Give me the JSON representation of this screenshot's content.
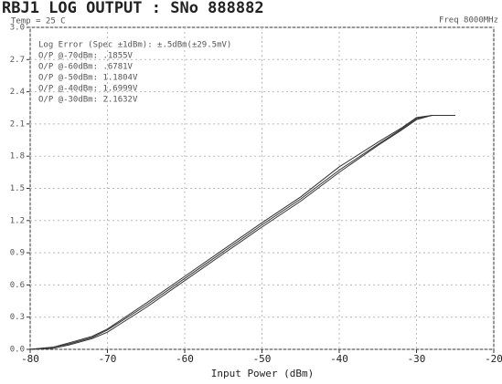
{
  "chart_data": {
    "type": "line",
    "title": "RBJ1 LOG OUTPUT : SNo 888882",
    "subtitle": "Temp = 25 C",
    "frequency_label": "Freq 8000MHz",
    "x_label": "Input Power (dBm)",
    "annotations": [
      "Log Error (Spec ±1dBm): ±.5dBm(±29.5mV)",
      "O/P @-70dBm: .1855V",
      "O/P @-60dBm: .6781V",
      "O/P @-50dBm: 1.1804V",
      "O/P @-40dBm: 1.6999V",
      "O/P @-30dBm: 2.1632V"
    ],
    "x": [
      -80,
      -77,
      -75,
      -72,
      -70,
      -65,
      -60,
      -55,
      -50,
      -45,
      -40,
      -35,
      -32,
      -30,
      -28,
      -25
    ],
    "series": [
      {
        "color": "#333333",
        "values": [
          0,
          0.02,
          0.06,
          0.12,
          0.19,
          0.43,
          0.68,
          0.93,
          1.18,
          1.42,
          1.7,
          1.93,
          2.06,
          2.16,
          2.18,
          2.18
        ]
      },
      {
        "color": "#333333",
        "values": [
          0,
          0.01,
          0.04,
          0.1,
          0.16,
          0.39,
          0.64,
          0.89,
          1.14,
          1.38,
          1.65,
          1.9,
          2.04,
          2.14,
          2.18,
          2.18
        ]
      },
      {
        "color": "#333333",
        "values": [
          0,
          0.02,
          0.05,
          0.11,
          0.18,
          0.41,
          0.66,
          0.91,
          1.16,
          1.4,
          1.67,
          1.91,
          2.05,
          2.15,
          2.18,
          2.18
        ]
      }
    ],
    "xlim": [
      -80,
      -20
    ],
    "xticks": [
      -80,
      -70,
      -60,
      -50,
      -40,
      -30,
      -20
    ],
    "ylim": [
      0,
      3
    ],
    "yticks": [
      {
        "value": 0,
        "label": "0.0"
      },
      {
        "value": 0.3,
        "label": "0.3"
      },
      {
        "value": 0.6,
        "label": "0.6"
      },
      {
        "value": 0.9,
        "label": "0.9"
      },
      {
        "value": 1.2,
        "label": "1.2"
      },
      {
        "value": 1.5,
        "label": "1.5"
      },
      {
        "value": 1.8,
        "label": "1.8"
      },
      {
        "value": 2.1,
        "label": "2.1"
      },
      {
        "value": 2.4,
        "label": "2.4"
      },
      {
        "value": 2.7,
        "label": "2.7"
      },
      {
        "value": 3,
        "label": "3.0"
      }
    ],
    "grid": true
  }
}
